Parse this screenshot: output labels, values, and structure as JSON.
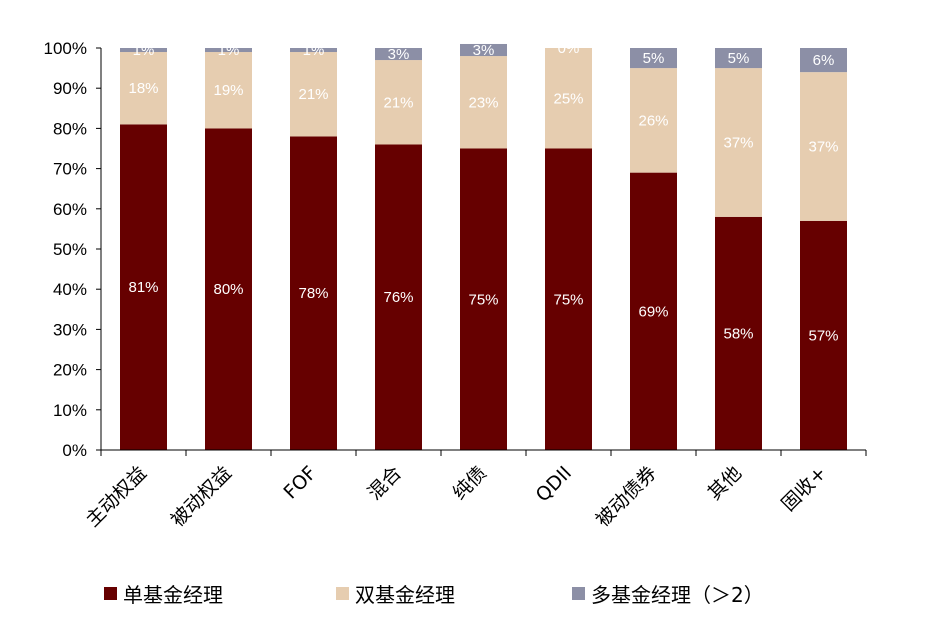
{
  "chart_data": {
    "type": "bar",
    "stacked": true,
    "categories": [
      "主动权益",
      "被动权益",
      "FOF",
      "混合",
      "纯债",
      "QDII",
      "被动债券",
      "其他",
      "固收+"
    ],
    "series": [
      {
        "name": "单基金经理",
        "color": "#660000",
        "label_color": "#ffffff",
        "values": [
          81,
          80,
          78,
          76,
          75,
          75,
          69,
          58,
          57
        ]
      },
      {
        "name": "双基金经理",
        "color": "#E6CDB0",
        "label_color": "#ffffff",
        "values": [
          18,
          19,
          21,
          21,
          23,
          25,
          26,
          37,
          37
        ]
      },
      {
        "name": "多基金经理（＞2）",
        "color": "#8C8FA6",
        "label_color": "#ffffff",
        "values": [
          1,
          1,
          1,
          3,
          3,
          0,
          5,
          5,
          6
        ]
      }
    ],
    "yticks": [
      "0%",
      "10%",
      "20%",
      "30%",
      "40%",
      "50%",
      "60%",
      "70%",
      "80%",
      "90%",
      "100%"
    ],
    "ylim": [
      0,
      100
    ],
    "value_suffix": "%",
    "legend_position": "bottom",
    "grid": false
  }
}
